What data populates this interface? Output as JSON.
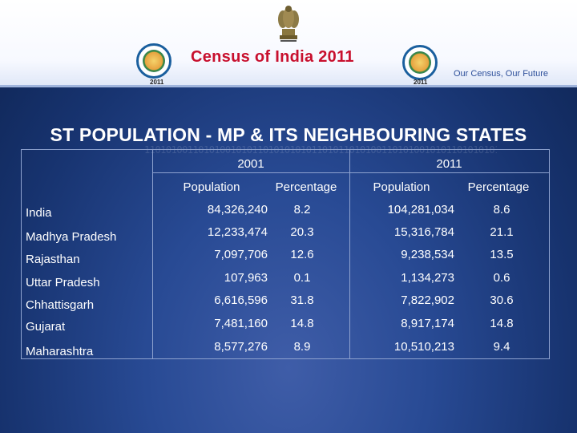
{
  "header": {
    "census_title": "Census of India 2011",
    "tagline": "Our Census, Our Future",
    "logo_year": "2011"
  },
  "title": "ST POPULATION - MP & ITS NEIGHBOURING STATES",
  "table": {
    "year_headers": [
      "2001",
      "2011"
    ],
    "column_headers": [
      "Population",
      "Percentage",
      "Population",
      "Percentage"
    ],
    "rows": [
      {
        "name": "India",
        "pop_2001": "84,326,240",
        "pct_2001": "8.2",
        "pop_2011": "104,281,034",
        "pct_2011": "8.6"
      },
      {
        "name": "Madhya Pradesh",
        "pop_2001": "12,233,474",
        "pct_2001": "20.3",
        "pop_2011": "15,316,784",
        "pct_2011": "21.1"
      },
      {
        "name": "Rajasthan",
        "pop_2001": "7,097,706",
        "pct_2001": "12.6",
        "pop_2011": "9,238,534",
        "pct_2011": "13.5"
      },
      {
        "name": "Uttar Pradesh",
        "pop_2001": "107,963",
        "pct_2001": "0.1",
        "pop_2011": "1,134,273",
        "pct_2011": "0.6"
      },
      {
        "name": "Chhattisgarh",
        "pop_2001": "6,616,596",
        "pct_2001": "31.8",
        "pop_2011": "7,822,902",
        "pct_2011": "30.6"
      },
      {
        "name": "Gujarat",
        "pop_2001": "7,481,160",
        "pct_2001": "14.8",
        "pop_2011": "8,917,174",
        "pct_2011": "14.8"
      },
      {
        "name": "Maharashtra",
        "pop_2001": "8,577,276",
        "pct_2001": "8.9",
        "pop_2011": "10,510,213",
        "pct_2011": "9.4"
      }
    ]
  },
  "colors": {
    "census_title": "#c8102e",
    "background": "#284a94",
    "text": "#ffffff"
  }
}
